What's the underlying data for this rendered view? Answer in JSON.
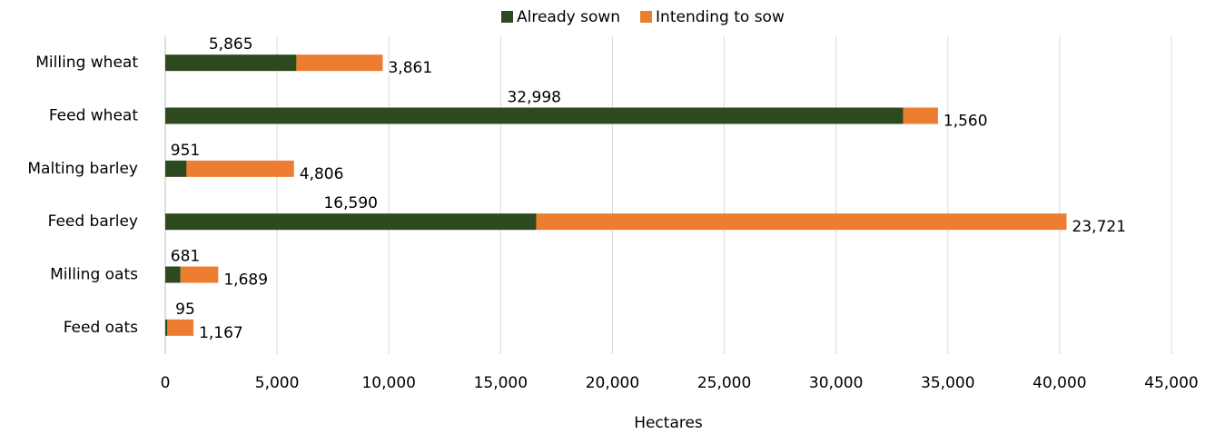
{
  "chart_data": {
    "type": "stacked-barh",
    "x_label": "Hectares",
    "categories": [
      "Milling wheat",
      "Feed wheat",
      "Malting barley",
      "Feed barley",
      "Milling oats",
      "Feed oats"
    ],
    "series": [
      {
        "name": "Already sown",
        "color": "#2d4a1e",
        "values": [
          5865,
          32998,
          951,
          16590,
          681,
          95
        ],
        "value_labels": [
          "5,865",
          "32,998",
          "951",
          "16,590",
          "681",
          "95"
        ]
      },
      {
        "name": "Intending to sow",
        "color": "#ed7d31",
        "values": [
          3861,
          1560,
          4806,
          23721,
          1689,
          1167
        ],
        "value_labels": [
          "3,861",
          "1,560",
          "4,806",
          "23,721",
          "1,689",
          "1,167"
        ]
      }
    ],
    "xlim": [
      0,
      45000
    ],
    "xticks": [
      0,
      {
        "value": 5000,
        "label": "5,000"
      },
      {
        "value": 10000,
        "label": "10,000"
      },
      {
        "value": 15000,
        "label": "15,000"
      },
      {
        "value": 20000,
        "label": "20,000"
      },
      {
        "value": 25000,
        "label": "25,000"
      },
      {
        "value": 30000,
        "label": "30,000"
      },
      {
        "value": 35000,
        "label": "35,000"
      },
      {
        "value": 40000,
        "label": "40,000"
      },
      {
        "value": 45000,
        "label": "45,000"
      }
    ],
    "grid": true,
    "legend": "top"
  }
}
